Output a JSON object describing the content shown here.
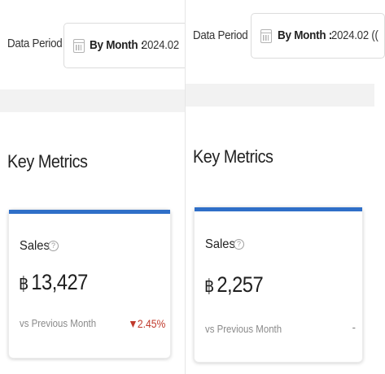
{
  "panels": [
    {
      "filter": {
        "label": "Data Period",
        "mode": "By Month :",
        "value": "2024.02"
      },
      "section_title": "Key Metrics",
      "metric_card": {
        "title": "Sales",
        "help_icon": "?",
        "currency": "฿",
        "value": "13,427",
        "compare_label": "vs Previous Month",
        "delta": "2.45%",
        "delta_direction": "down"
      }
    },
    {
      "filter": {
        "label": "Data Period",
        "mode": "By Month :",
        "value": "2024.02 (("
      },
      "section_title": "Key Metrics",
      "metric_card": {
        "title": "Sales",
        "help_icon": "?",
        "currency": "฿",
        "value": "2,257",
        "compare_label": "vs Previous Month",
        "delta": "-"
      }
    }
  ],
  "colors": {
    "accent": "#2f6fc8",
    "negative": "#c0392b",
    "band": "#f2f2f2"
  }
}
